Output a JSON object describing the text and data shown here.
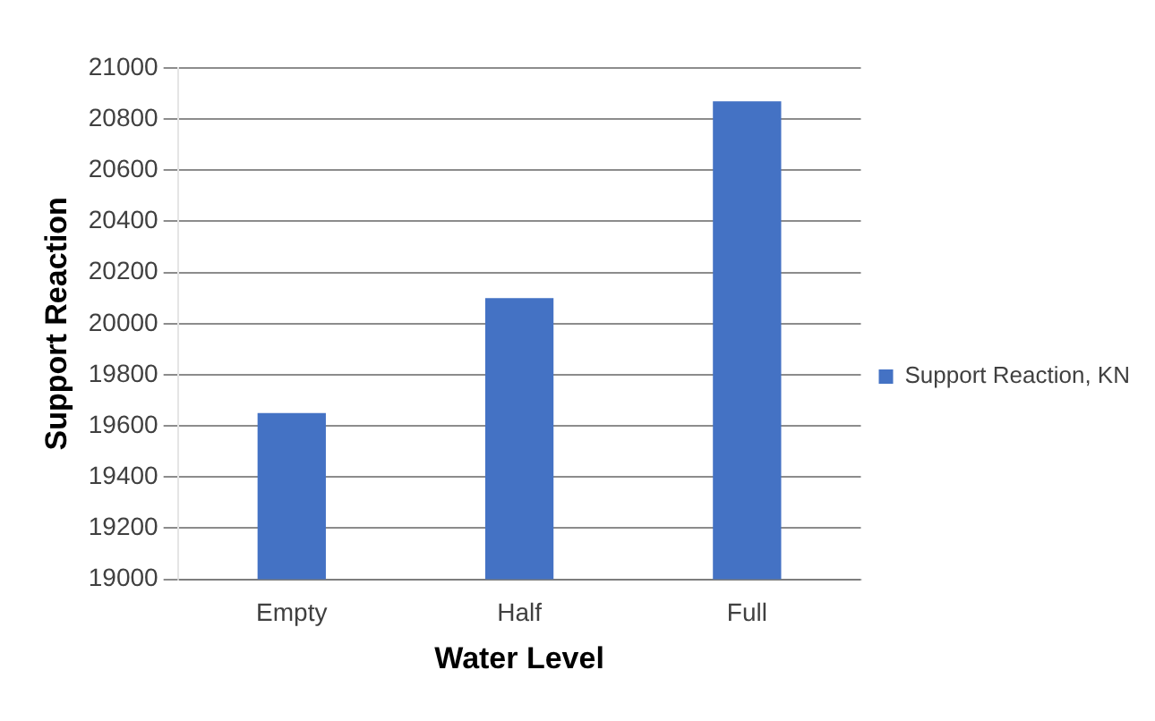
{
  "chart_data": {
    "type": "bar",
    "xlabel": "Water Level",
    "ylabel": "Support Reaction",
    "categories": [
      "Empty",
      "Half",
      "Full"
    ],
    "series": [
      {
        "name": "Support Reaction, KN",
        "color": "#4472c4",
        "values": [
          19650,
          20100,
          20870
        ]
      }
    ],
    "ylim": [
      19000,
      21000
    ],
    "yticks": [
      19000,
      19200,
      19400,
      19600,
      19800,
      20000,
      20200,
      20400,
      20600,
      20800,
      21000
    ],
    "grid": "y",
    "legend": "right"
  }
}
